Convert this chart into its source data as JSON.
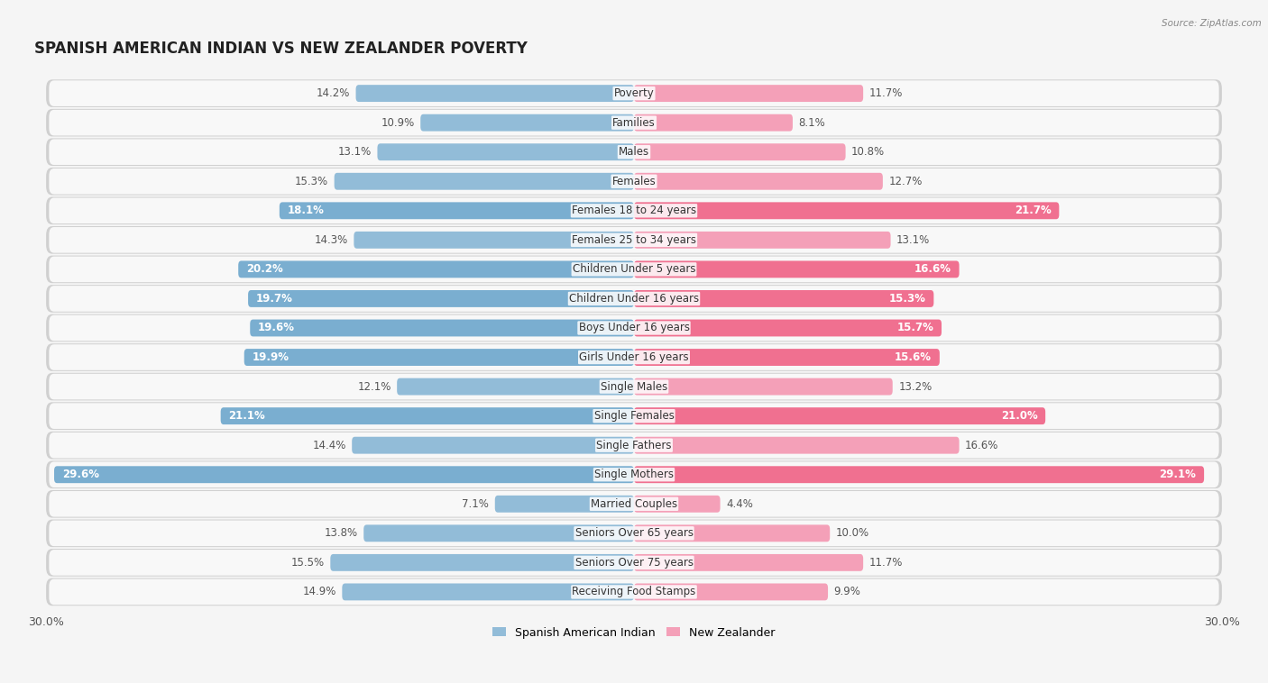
{
  "title": "SPANISH AMERICAN INDIAN VS NEW ZEALANDER POVERTY",
  "source": "Source: ZipAtlas.com",
  "categories": [
    "Poverty",
    "Families",
    "Males",
    "Females",
    "Females 18 to 24 years",
    "Females 25 to 34 years",
    "Children Under 5 years",
    "Children Under 16 years",
    "Boys Under 16 years",
    "Girls Under 16 years",
    "Single Males",
    "Single Females",
    "Single Fathers",
    "Single Mothers",
    "Married Couples",
    "Seniors Over 65 years",
    "Seniors Over 75 years",
    "Receiving Food Stamps"
  ],
  "left_values": [
    14.2,
    10.9,
    13.1,
    15.3,
    18.1,
    14.3,
    20.2,
    19.7,
    19.6,
    19.9,
    12.1,
    21.1,
    14.4,
    29.6,
    7.1,
    13.8,
    15.5,
    14.9
  ],
  "right_values": [
    11.7,
    8.1,
    10.8,
    12.7,
    21.7,
    13.1,
    16.6,
    15.3,
    15.7,
    15.6,
    13.2,
    21.0,
    16.6,
    29.1,
    4.4,
    10.0,
    11.7,
    9.9
  ],
  "left_color_normal": "#92bcd8",
  "left_color_highlight": "#7aaed0",
  "right_color_normal": "#f4a0b8",
  "right_color_highlight": "#f07090",
  "highlight_rows": [
    4,
    6,
    7,
    8,
    9,
    11,
    13
  ],
  "max_value": 30.0,
  "legend_left": "Spanish American Indian",
  "legend_right": "New Zealander",
  "background_color": "#f5f5f5",
  "row_bg_color": "#e8e8e8",
  "row_inner_bg": "#fafafa",
  "title_fontsize": 12,
  "label_fontsize": 8.5,
  "value_fontsize": 8.5
}
